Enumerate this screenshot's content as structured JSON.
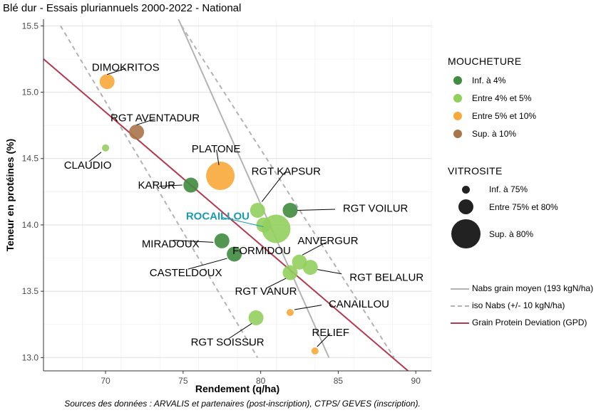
{
  "chart_data": {
    "type": "scatter",
    "title": "Blé dur - Essais pluriannuels 2000-2022 - National",
    "xlabel": "Rendement (q/ha)",
    "ylabel": "Teneur en protéines (%)",
    "xlim": [
      66,
      91
    ],
    "ylim": [
      12.9,
      15.55
    ],
    "x_ticks": [
      "70",
      "75",
      "80",
      "85",
      "90"
    ],
    "y_ticks": [
      "13.0",
      "13.5",
      "14.0",
      "14.5",
      "15.0",
      "15.5"
    ],
    "grid": true,
    "points": [
      {
        "label": "DIMOKRITOS",
        "x": 70.1,
        "y": 15.08,
        "mouch": 2,
        "vitro": 1
      },
      {
        "label": "RGT AVENTADUR",
        "x": 72.0,
        "y": 14.7,
        "mouch": 3,
        "vitro": 1
      },
      {
        "label": "CLAUDIO",
        "x": 70.0,
        "y": 14.58,
        "mouch": 1,
        "vitro": 0
      },
      {
        "label": "PLATONE",
        "x": 77.4,
        "y": 14.37,
        "mouch": 2,
        "vitro": 2
      },
      {
        "label": "KARUR",
        "x": 75.5,
        "y": 14.3,
        "mouch": 0,
        "vitro": 1
      },
      {
        "label": "RGT KAPSUR",
        "x": 79.8,
        "y": 14.11,
        "mouch": 1,
        "vitro": 1
      },
      {
        "label": "RGT VOILUR",
        "x": 81.9,
        "y": 14.11,
        "mouch": 0,
        "vitro": 1
      },
      {
        "label": "ROCAILLOU",
        "x": 81.0,
        "y": 13.97,
        "mouch": 1,
        "vitro": 2,
        "highlight": true
      },
      {
        "label": "MIRADOUX",
        "x": 77.5,
        "y": 13.88,
        "mouch": 0,
        "vitro": 1
      },
      {
        "label": "FORMIDOU",
        "x": 80.2,
        "y": 14.0,
        "mouch": 1,
        "vitro": 1
      },
      {
        "label": "CASTELDOUX",
        "x": 78.3,
        "y": 13.78,
        "mouch": 0,
        "vitro": 1
      },
      {
        "label": "ANVERGUR",
        "x": 82.5,
        "y": 13.72,
        "mouch": 1,
        "vitro": 1
      },
      {
        "label": "RGT BELALUR",
        "x": 83.2,
        "y": 13.68,
        "mouch": 1,
        "vitro": 1
      },
      {
        "label": "RGT VANUR",
        "x": 81.9,
        "y": 13.64,
        "mouch": 1,
        "vitro": 1
      },
      {
        "label": "CANAILLOU",
        "x": 81.9,
        "y": 13.34,
        "mouch": 2,
        "vitro": 0
      },
      {
        "label": "RGT SOISSUR",
        "x": 79.7,
        "y": 13.3,
        "mouch": 1,
        "vitro": 1
      },
      {
        "label": "RELIEF",
        "x": 83.5,
        "y": 13.05,
        "mouch": 2,
        "vitro": 0
      }
    ],
    "lines": {
      "nabs_mean": {
        "p1": [
          74.7,
          15.55
        ],
        "p2": [
          84.4,
          13.0
        ]
      },
      "iso_low": {
        "p1": [
          67.1,
          15.5
        ],
        "p2": [
          79.8,
          13.0
        ]
      },
      "iso_high": {
        "p1": [
          74.9,
          15.5
        ],
        "p2": [
          88.6,
          13.0
        ]
      },
      "gpd": {
        "p1": [
          66.0,
          15.25
        ],
        "p2": [
          89.5,
          12.9
        ]
      }
    }
  },
  "legend": {
    "mouch_title": "MOUCHETURE",
    "mouch_items": [
      {
        "label": "Inf. à 4%",
        "color": "#3f8b3f"
      },
      {
        "label": "Entre 4% et 5%",
        "color": "#92cf5d"
      },
      {
        "label": "Entre 5% et 10%",
        "color": "#f8a93a"
      },
      {
        "label": "Sup. à 10%",
        "color": "#a87449"
      }
    ],
    "vitro_title": "VITROSITE",
    "vitro_items": [
      {
        "label": "Inf. à 75%"
      },
      {
        "label": "Entre 75% et 80%"
      },
      {
        "label": "Sup. à 80%"
      }
    ],
    "line_items": [
      {
        "label": "Nabs grain moyen (193 kgN/ha)",
        "color": "#b3b3b3",
        "style": "solid"
      },
      {
        "label": "iso Nabs (+/- 10 kgN/ha)",
        "color": "#b3b3b3",
        "style": "dashed"
      },
      {
        "label": "Grain Protein Deviation (GPD)",
        "color": "#b33a4f",
        "style": "solid"
      }
    ]
  },
  "source": "Sources des données : ARVALIS et partenaires (post-inscription), CTPS/ GEVES (inscription).",
  "colors": {
    "highlight_label": "#1a9bb0",
    "gpd_line": "#b33a4f",
    "nabs_line": "#b3b3b3"
  }
}
